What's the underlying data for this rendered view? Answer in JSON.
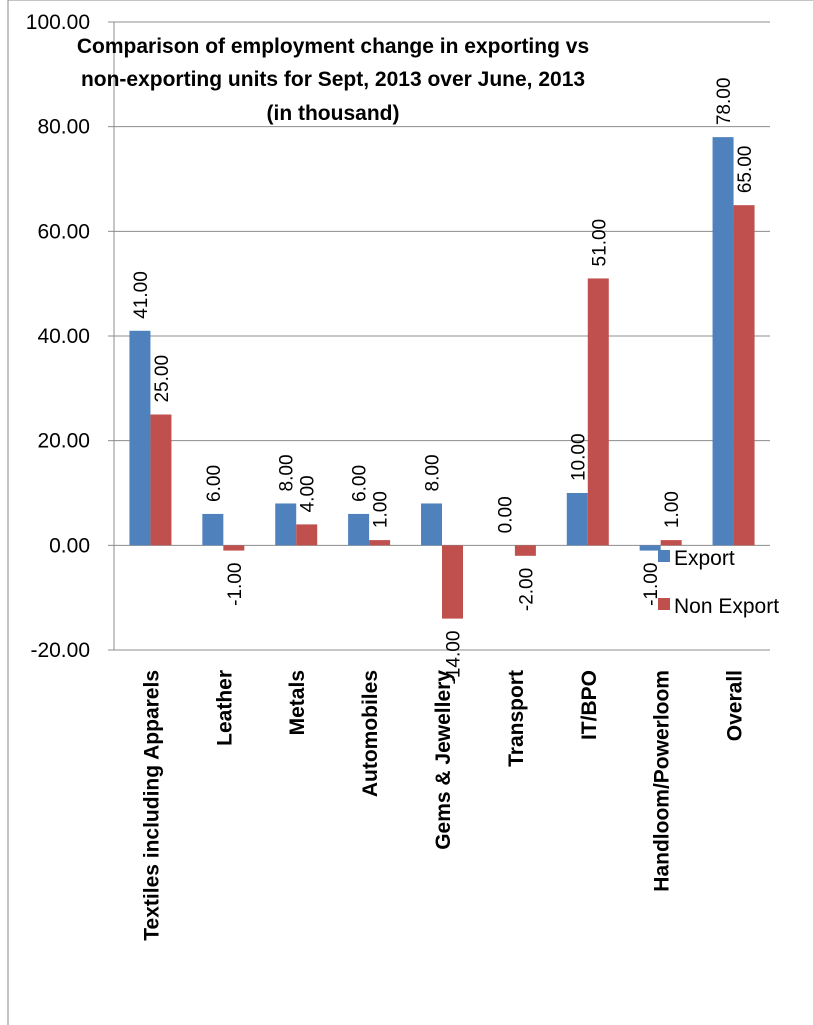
{
  "chart_data": {
    "type": "bar",
    "title_lines": [
      "Comparison of employment change in exporting vs",
      "non-exporting units for Sept, 2013 over June, 2013",
      "(in thousand)"
    ],
    "categories": [
      "Textiles including Apparels",
      "Leather",
      "Metals",
      "Automobiles",
      "Gems & Jewellery",
      "Transport",
      "IT/BPO",
      "Handloom/Powerloom",
      "Overall"
    ],
    "series": [
      {
        "name": "Export",
        "color": "#4f81bd",
        "values": [
          41,
          6,
          8,
          6,
          8,
          0,
          10,
          -1,
          78
        ],
        "labels": [
          "41.00",
          "6.00",
          "8.00",
          "6.00",
          "8.00",
          "0.00",
          "10.00",
          "-1.00",
          "78.00"
        ]
      },
      {
        "name": "Non Export",
        "color": "#c0504d",
        "values": [
          25,
          -1,
          4,
          1,
          -14,
          -2,
          51,
          1,
          65
        ],
        "labels": [
          "25.00",
          "-1.00",
          "4.00",
          "1.00",
          "-14.00",
          "-2.00",
          "51.00",
          "1.00",
          "65.00"
        ]
      }
    ],
    "yticks": [
      "100.00",
      "80.00",
      "60.00",
      "40.00",
      "20.00",
      "0.00",
      "-20.00"
    ],
    "ylim": [
      -20,
      100
    ],
    "xlabel": "",
    "ylabel": "",
    "grid": true,
    "legend_position": "right"
  }
}
